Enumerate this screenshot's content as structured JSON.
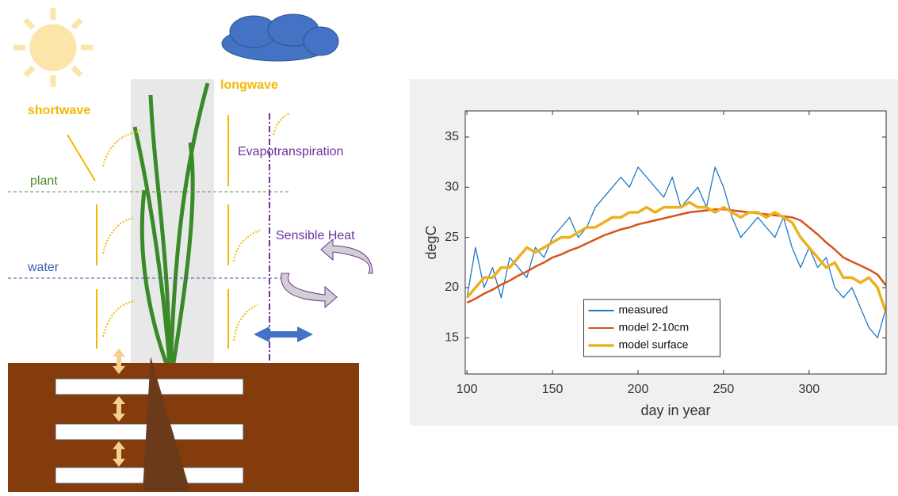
{
  "diagram": {
    "shortwave": "shortwave",
    "longwave": "longwave",
    "plant": "plant",
    "water": "water",
    "evapotranspiration": "Evapotranspiration",
    "sensible_heat": "Sensible Heat"
  },
  "chart_data": {
    "type": "line",
    "xlabel": "day in year",
    "ylabel": "degC",
    "x": [
      100,
      105,
      110,
      115,
      120,
      125,
      130,
      135,
      140,
      145,
      150,
      155,
      160,
      165,
      170,
      175,
      180,
      185,
      190,
      195,
      200,
      205,
      210,
      215,
      220,
      225,
      230,
      235,
      240,
      245,
      250,
      255,
      260,
      265,
      270,
      275,
      280,
      285,
      290,
      295,
      300,
      305,
      310,
      315,
      320,
      325,
      330,
      335,
      340,
      345
    ],
    "series": [
      {
        "name": "measured",
        "color": "#1f77c4",
        "values": [
          19,
          24,
          20,
          22,
          19,
          23,
          22,
          21,
          24,
          23,
          25,
          26,
          27,
          25,
          26,
          28,
          29,
          30,
          31,
          30,
          32,
          31,
          30,
          29,
          31,
          28,
          29,
          30,
          28,
          32,
          30,
          27,
          25,
          26,
          27,
          26,
          25,
          27,
          24,
          22,
          24,
          22,
          23,
          20,
          19,
          20,
          18,
          16,
          15,
          18
        ]
      },
      {
        "name": "model 2-10cm",
        "color": "#d95319",
        "values": [
          18.5,
          18.9,
          19.4,
          19.8,
          20.3,
          20.7,
          21.2,
          21.6,
          22.1,
          22.5,
          23.0,
          23.3,
          23.7,
          24.0,
          24.4,
          24.8,
          25.2,
          25.5,
          25.8,
          26.0,
          26.3,
          26.5,
          26.7,
          26.9,
          27.1,
          27.3,
          27.5,
          27.6,
          27.7,
          27.8,
          27.8,
          27.7,
          27.6,
          27.5,
          27.4,
          27.3,
          27.2,
          27.1,
          27.0,
          26.7,
          26.0,
          25.3,
          24.5,
          23.8,
          23.0,
          22.6,
          22.2,
          21.8,
          21.3,
          20.2
        ]
      },
      {
        "name": "model surface",
        "color": "#edb120",
        "values": [
          19,
          20,
          21,
          21,
          22,
          22,
          23,
          24,
          23.5,
          24,
          24.5,
          25,
          25,
          25.5,
          26,
          26,
          26.5,
          27,
          27,
          27.5,
          27.5,
          28,
          27.5,
          28,
          28,
          28,
          28.5,
          28,
          28,
          27.5,
          28,
          27.5,
          27,
          27.5,
          27.5,
          27,
          27.5,
          27,
          26.5,
          25,
          24,
          23,
          22,
          22.5,
          21,
          21,
          20.5,
          21,
          20,
          17.5
        ]
      }
    ],
    "xlim": [
      99,
      345
    ],
    "ylim": [
      11.4,
      37.6
    ],
    "xticks": [
      100,
      150,
      200,
      250,
      300
    ],
    "yticks": [
      15,
      20,
      25,
      30,
      35
    ],
    "legend": "lower center"
  }
}
